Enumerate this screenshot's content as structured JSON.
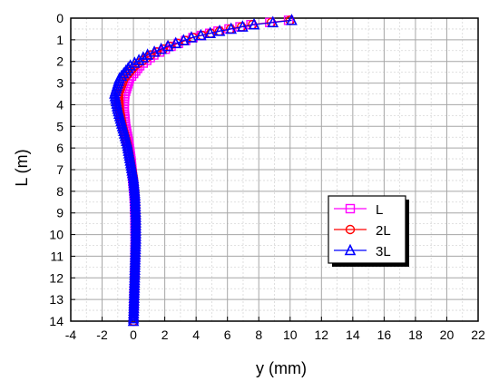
{
  "chart_data": {
    "type": "line",
    "title": "",
    "xlabel": "y (mm)",
    "ylabel": "L (m)",
    "xlim": [
      -4,
      22
    ],
    "ylim": [
      0,
      14
    ],
    "y_axis_inverted": true,
    "x_ticks": [
      "-4",
      "-2",
      "0",
      "2",
      "4",
      "6",
      "8",
      "10",
      "12",
      "14",
      "16",
      "18",
      "20",
      "22"
    ],
    "y_ticks": [
      "0",
      "1",
      "2",
      "3",
      "4",
      "5",
      "6",
      "7",
      "8",
      "9",
      "10",
      "11",
      "12",
      "13",
      "14"
    ],
    "grid": true,
    "legend_position": "right",
    "series": [
      {
        "name": "L",
        "color": "#ff00ff",
        "marker": "square",
        "x": [
          9.9,
          7.5,
          5.4,
          3.8,
          2.4,
          1.3,
          0.4,
          -0.25,
          -0.55,
          -0.6,
          -0.5,
          -0.3,
          -0.15,
          -0.05,
          0.05,
          0.1,
          0.12,
          0.1,
          0.05,
          0.0
        ],
        "y": [
          0.1,
          0.3,
          0.6,
          0.9,
          1.3,
          1.7,
          2.2,
          2.8,
          3.5,
          4.2,
          5.0,
          5.8,
          6.6,
          7.4,
          8.2,
          9.2,
          10.2,
          11.4,
          12.7,
          14.0
        ]
      },
      {
        "name": "2L",
        "color": "#ff0000",
        "marker": "circle",
        "x": [
          10.0,
          7.6,
          5.5,
          3.8,
          2.3,
          1.1,
          0.1,
          -0.6,
          -0.95,
          -0.9,
          -0.7,
          -0.4,
          -0.2,
          0.0,
          0.1,
          0.15,
          0.15,
          0.1,
          0.05,
          0.0
        ],
        "y": [
          0.1,
          0.3,
          0.6,
          0.9,
          1.3,
          1.7,
          2.2,
          2.8,
          3.5,
          4.2,
          5.0,
          5.8,
          6.6,
          7.4,
          8.2,
          9.2,
          10.2,
          11.4,
          12.7,
          14.0
        ]
      },
      {
        "name": "3L",
        "color": "#0000ff",
        "marker": "triangle",
        "x": [
          10.1,
          7.7,
          5.5,
          3.7,
          2.2,
          0.9,
          -0.2,
          -0.9,
          -1.2,
          -1.0,
          -0.7,
          -0.4,
          -0.2,
          0.0,
          0.1,
          0.15,
          0.15,
          0.1,
          0.05,
          0.0
        ],
        "y": [
          0.1,
          0.3,
          0.6,
          0.9,
          1.3,
          1.7,
          2.2,
          2.8,
          3.5,
          4.2,
          5.0,
          5.8,
          6.6,
          7.4,
          8.2,
          9.2,
          10.2,
          11.4,
          12.7,
          14.0
        ]
      }
    ]
  }
}
